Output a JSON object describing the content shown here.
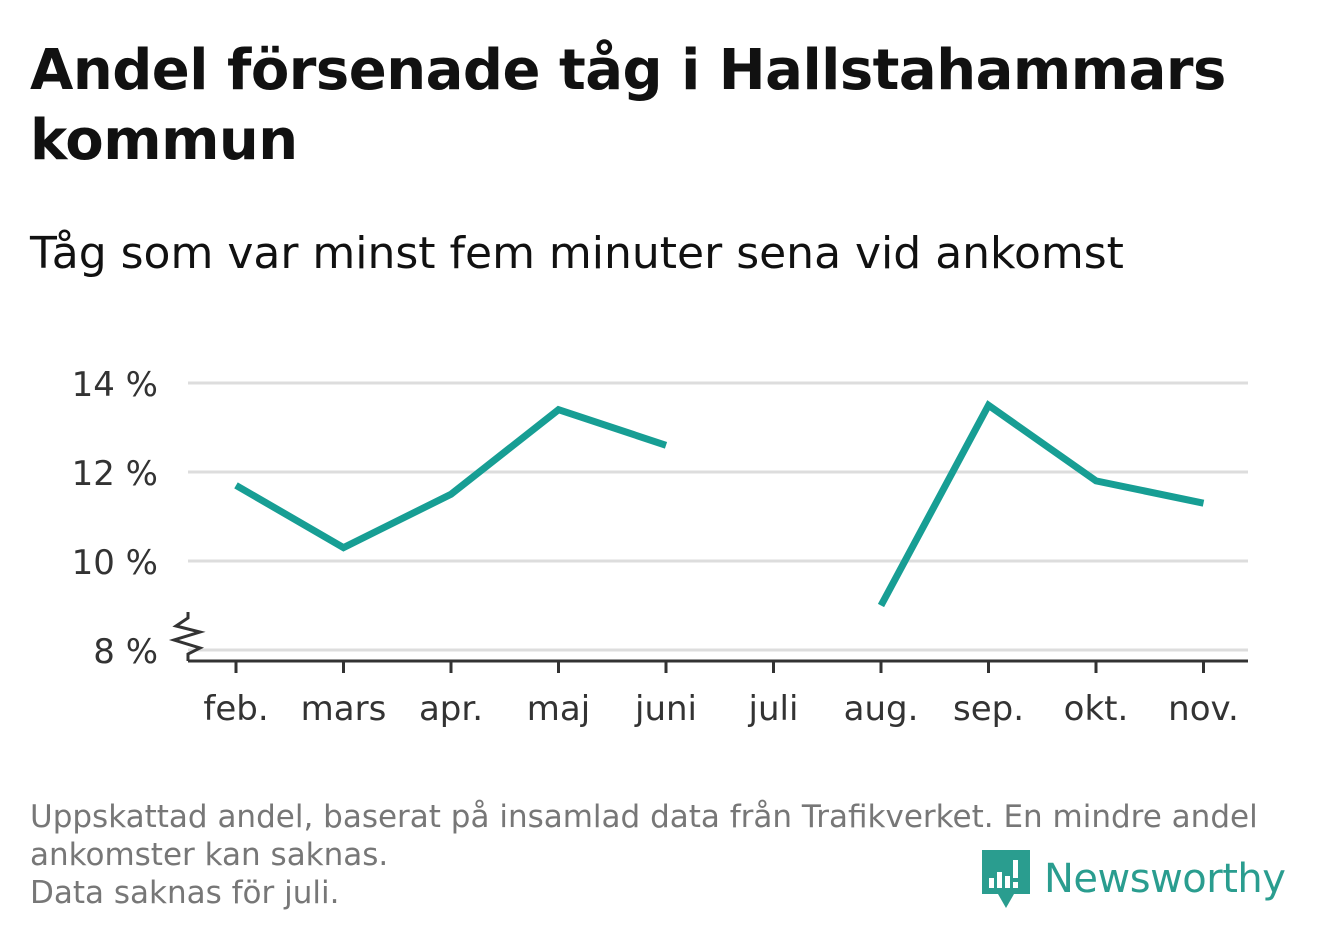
{
  "header": {
    "title": "Andel försenade tåg i Hallstahammars kommun",
    "subtitle": "Tåg som var minst fem minuter sena vid ankomst"
  },
  "footnote": {
    "lines": [
      "Uppskattad andel, baserat på insamlad data från Trafikverket. En mindre andel",
      "ankomster kan saknas.",
      "Data saknas för juli."
    ]
  },
  "brand": {
    "name": "Newsworthy",
    "icon": "newsworthy-logo-icon",
    "color": "#2a9d8f"
  },
  "chart_data": {
    "type": "line",
    "title": "Andel försenade tåg i Hallstahammars kommun",
    "subtitle": "Tåg som var minst fem minuter sena vid ankomst",
    "xlabel": "",
    "ylabel": "",
    "categories": [
      "feb.",
      "mars",
      "apr.",
      "maj",
      "juni",
      "juli",
      "aug.",
      "sep.",
      "okt.",
      "nov."
    ],
    "series": [
      {
        "values": [
          11.7,
          10.3,
          11.5,
          13.4,
          12.6,
          null,
          9.0,
          13.5,
          11.8,
          11.3
        ],
        "color": "#179e94"
      }
    ],
    "ylim": [
      8,
      14
    ],
    "yticks": [
      8,
      10,
      12,
      14
    ],
    "ytick_labels": [
      "8 %",
      "10 %",
      "12 %",
      "14 %"
    ],
    "axis_break": true,
    "grid": true,
    "legend": "none",
    "colors": {
      "line": "#179e94",
      "grid": "#dddddd",
      "axis": "#333333",
      "text": "#333333"
    }
  }
}
